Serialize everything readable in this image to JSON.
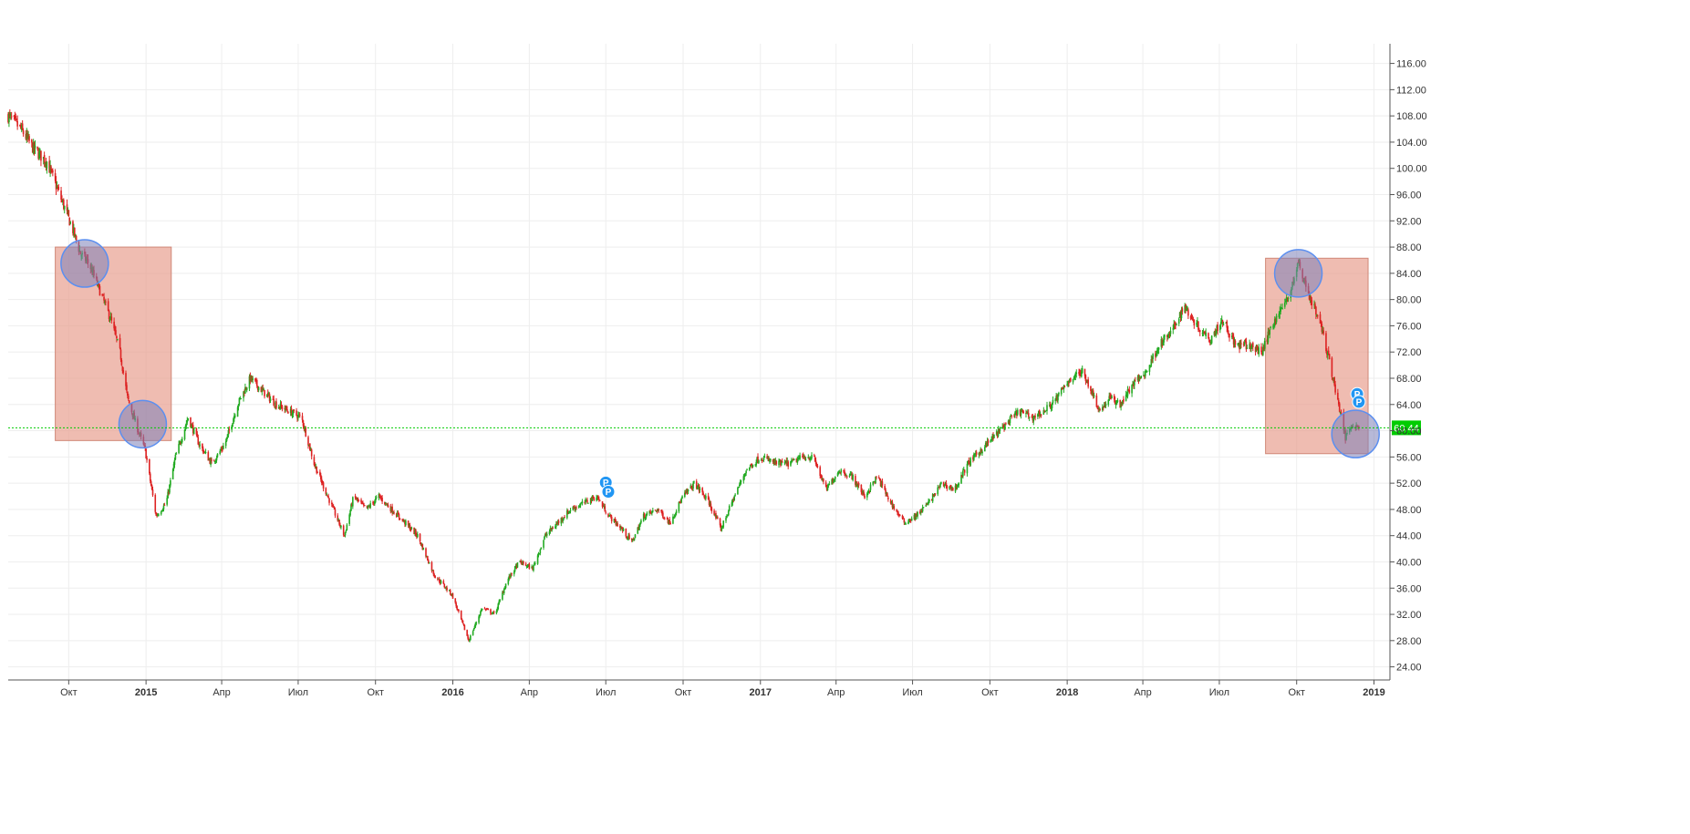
{
  "chart_data": {
    "type": "candlestick",
    "title": "",
    "xlabel": "",
    "ylabel": "",
    "x_range": [
      "2014-07-21",
      "2019-01-20"
    ],
    "ylim": [
      22,
      119
    ],
    "y_ticks": [
      "24.00",
      "28.00",
      "32.00",
      "36.00",
      "40.00",
      "44.00",
      "48.00",
      "52.00",
      "56.00",
      "60.00",
      "64.00",
      "68.00",
      "72.00",
      "76.00",
      "80.00",
      "84.00",
      "88.00",
      "92.00",
      "96.00",
      "100.00",
      "104.00",
      "108.00",
      "112.00",
      "116.00"
    ],
    "x_ticks": [
      {
        "date": "2014-10-01",
        "label": "Окт",
        "year": false
      },
      {
        "date": "2015-01-01",
        "label": "2015",
        "year": true
      },
      {
        "date": "2015-04-01",
        "label": "Апр",
        "year": false
      },
      {
        "date": "2015-07-01",
        "label": "Июл",
        "year": false
      },
      {
        "date": "2015-10-01",
        "label": "Окт",
        "year": false
      },
      {
        "date": "2016-01-01",
        "label": "2016",
        "year": true
      },
      {
        "date": "2016-04-01",
        "label": "Апр",
        "year": false
      },
      {
        "date": "2016-07-01",
        "label": "Июл",
        "year": false
      },
      {
        "date": "2016-10-01",
        "label": "Окт",
        "year": false
      },
      {
        "date": "2017-01-01",
        "label": "2017",
        "year": true
      },
      {
        "date": "2017-04-01",
        "label": "Апр",
        "year": false
      },
      {
        "date": "2017-07-01",
        "label": "Июл",
        "year": false
      },
      {
        "date": "2017-10-01",
        "label": "Окт",
        "year": false
      },
      {
        "date": "2018-01-01",
        "label": "2018",
        "year": true
      },
      {
        "date": "2018-04-01",
        "label": "Апр",
        "year": false
      },
      {
        "date": "2018-07-01",
        "label": "Июл",
        "year": false
      },
      {
        "date": "2018-10-01",
        "label": "Окт",
        "year": false
      },
      {
        "date": "2019-01-01",
        "label": "2019",
        "year": true
      }
    ],
    "grid": true,
    "current_price": {
      "value": 60.44,
      "label": "60.44",
      "color": "#00cc00"
    },
    "colors": {
      "up": "#22aa22",
      "down": "#dd2222",
      "highlight_box": "#e8a090",
      "highlight_circle": "#8fa8e8",
      "marker": "#2196f3"
    },
    "close_path": [
      [
        "2014-07-21",
        108
      ],
      [
        "2014-08-05",
        106
      ],
      [
        "2014-08-20",
        103
      ],
      [
        "2014-09-05",
        101
      ],
      [
        "2014-09-20",
        96
      ],
      [
        "2014-10-05",
        91
      ],
      [
        "2014-10-15",
        87
      ],
      [
        "2014-10-25",
        85.5
      ],
      [
        "2014-11-05",
        82
      ],
      [
        "2014-11-20",
        77
      ],
      [
        "2014-12-01",
        72
      ],
      [
        "2014-12-10",
        65
      ],
      [
        "2014-12-20",
        61
      ],
      [
        "2014-12-31",
        57
      ],
      [
        "2015-01-13",
        47
      ],
      [
        "2015-01-25",
        49
      ],
      [
        "2015-02-05",
        56
      ],
      [
        "2015-02-20",
        62
      ],
      [
        "2015-03-05",
        58
      ],
      [
        "2015-03-20",
        55
      ],
      [
        "2015-04-05",
        58
      ],
      [
        "2015-04-20",
        64
      ],
      [
        "2015-05-05",
        68
      ],
      [
        "2015-05-20",
        66
      ],
      [
        "2015-06-05",
        64
      ],
      [
        "2015-06-20",
        63
      ],
      [
        "2015-07-05",
        62
      ],
      [
        "2015-07-20",
        55
      ],
      [
        "2015-08-05",
        50
      ],
      [
        "2015-08-25",
        44
      ],
      [
        "2015-09-05",
        50
      ],
      [
        "2015-09-20",
        48
      ],
      [
        "2015-10-05",
        50
      ],
      [
        "2015-10-20",
        48
      ],
      [
        "2015-11-05",
        46
      ],
      [
        "2015-11-20",
        44
      ],
      [
        "2015-12-10",
        38
      ],
      [
        "2015-12-31",
        35
      ],
      [
        "2016-01-20",
        28
      ],
      [
        "2016-02-05",
        33
      ],
      [
        "2016-02-20",
        32
      ],
      [
        "2016-03-05",
        37
      ],
      [
        "2016-03-20",
        40
      ],
      [
        "2016-04-05",
        39
      ],
      [
        "2016-04-20",
        44
      ],
      [
        "2016-05-05",
        46
      ],
      [
        "2016-05-20",
        48
      ],
      [
        "2016-06-05",
        49
      ],
      [
        "2016-06-20",
        50
      ],
      [
        "2016-07-05",
        47
      ],
      [
        "2016-07-20",
        45
      ],
      [
        "2016-08-01",
        43
      ],
      [
        "2016-08-15",
        47
      ],
      [
        "2016-09-01",
        48
      ],
      [
        "2016-09-15",
        46
      ],
      [
        "2016-10-01",
        50
      ],
      [
        "2016-10-15",
        52
      ],
      [
        "2016-11-01",
        49
      ],
      [
        "2016-11-15",
        45
      ],
      [
        "2016-12-01",
        50
      ],
      [
        "2016-12-15",
        54
      ],
      [
        "2017-01-01",
        56
      ],
      [
        "2017-01-20",
        55
      ],
      [
        "2017-02-05",
        55
      ],
      [
        "2017-02-20",
        56
      ],
      [
        "2017-03-05",
        56
      ],
      [
        "2017-03-20",
        51
      ],
      [
        "2017-04-05",
        54
      ],
      [
        "2017-04-20",
        53
      ],
      [
        "2017-05-05",
        50
      ],
      [
        "2017-05-20",
        53
      ],
      [
        "2017-06-05",
        49
      ],
      [
        "2017-06-21",
        46
      ],
      [
        "2017-07-05",
        47
      ],
      [
        "2017-07-20",
        49
      ],
      [
        "2017-08-05",
        52
      ],
      [
        "2017-08-20",
        51
      ],
      [
        "2017-09-05",
        55
      ],
      [
        "2017-09-20",
        57
      ],
      [
        "2017-10-05",
        59
      ],
      [
        "2017-10-20",
        61
      ],
      [
        "2017-11-05",
        63
      ],
      [
        "2017-11-20",
        62
      ],
      [
        "2017-12-05",
        63
      ],
      [
        "2017-12-20",
        65
      ],
      [
        "2018-01-05",
        68
      ],
      [
        "2018-01-20",
        69
      ],
      [
        "2018-02-09",
        63
      ],
      [
        "2018-02-20",
        65
      ],
      [
        "2018-03-05",
        64
      ],
      [
        "2018-03-20",
        67
      ],
      [
        "2018-04-05",
        69
      ],
      [
        "2018-04-20",
        73
      ],
      [
        "2018-05-05",
        75
      ],
      [
        "2018-05-20",
        79
      ],
      [
        "2018-06-05",
        76
      ],
      [
        "2018-06-20",
        74
      ],
      [
        "2018-07-05",
        77
      ],
      [
        "2018-07-20",
        73
      ],
      [
        "2018-08-05",
        73
      ],
      [
        "2018-08-20",
        72
      ],
      [
        "2018-09-05",
        77
      ],
      [
        "2018-09-20",
        80
      ],
      [
        "2018-10-03",
        85.5
      ],
      [
        "2018-10-15",
        81
      ],
      [
        "2018-10-30",
        76
      ],
      [
        "2018-11-10",
        70
      ],
      [
        "2018-11-20",
        64
      ],
      [
        "2018-11-28",
        59
      ],
      [
        "2018-12-05",
        61
      ],
      [
        "2018-12-15",
        60.44
      ]
    ],
    "highlight_boxes": [
      {
        "start": "2014-09-15",
        "end": "2015-01-31",
        "low": 58.5,
        "high": 88
      },
      {
        "start": "2018-08-25",
        "end": "2018-12-25",
        "low": 56.5,
        "high": 86.3
      }
    ],
    "highlight_circles": [
      {
        "date": "2014-10-20",
        "price": 85.5
      },
      {
        "date": "2014-12-28",
        "price": 61
      },
      {
        "date": "2018-10-03",
        "price": 84
      },
      {
        "date": "2018-12-10",
        "price": 59.5
      }
    ],
    "markers": [
      {
        "date": "2016-07-01",
        "price": 52.1,
        "label": "P"
      },
      {
        "date": "2016-07-04",
        "price": 50.7,
        "label": "P"
      },
      {
        "date": "2018-12-12",
        "price": 65.6,
        "label": "P"
      },
      {
        "date": "2018-12-14",
        "price": 64.4,
        "label": "P"
      }
    ]
  }
}
